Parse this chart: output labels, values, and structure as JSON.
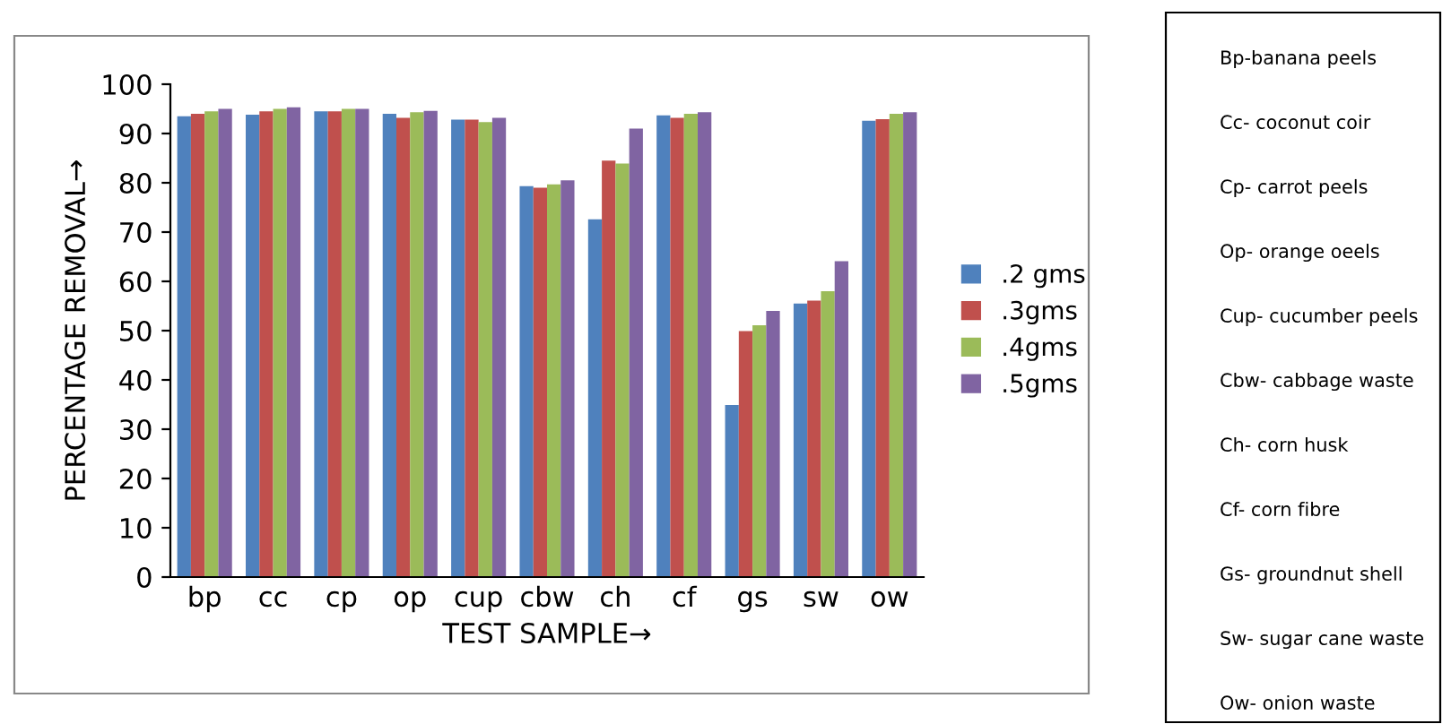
{
  "chart_data": {
    "type": "bar",
    "xlabel": "TEST SAMPLE→",
    "ylabel": "PERCENTAGE REMOVAL→",
    "categories": [
      "bp",
      "cc",
      "cp",
      "op",
      "cup",
      "cbw",
      "ch",
      "cf",
      "gs",
      "sw",
      "ow"
    ],
    "series": [
      {
        "name": ".2 gms",
        "color": "#4f81bd",
        "values": [
          93.5,
          93.8,
          94.5,
          94,
          92.8,
          79.3,
          72.6,
          93.7,
          34.9,
          55.5,
          92.6
        ]
      },
      {
        "name": ".3gms",
        "color": "#c0504d",
        "values": [
          94,
          94.5,
          94.5,
          93.2,
          92.8,
          79,
          84.5,
          93.2,
          49.9,
          56.1,
          92.9
        ]
      },
      {
        "name": ".4gms",
        "color": "#9bbb59",
        "values": [
          94.5,
          95,
          95,
          94.3,
          92.3,
          79.7,
          83.9,
          94,
          51.1,
          58,
          94
        ]
      },
      {
        "name": ".5gms",
        "color": "#8064a2",
        "values": [
          95,
          95.3,
          95,
          94.6,
          93.2,
          80.5,
          91,
          94.3,
          54,
          64.1,
          94.3
        ]
      }
    ],
    "ylim": [
      0,
      100
    ],
    "yticks": [
      0,
      10,
      20,
      30,
      40,
      50,
      60,
      70,
      80,
      90,
      100
    ],
    "grid": false,
    "legend": "right",
    "annotations": [
      "Bp-banana peels",
      "Cc- coconut coir",
      "Cp- carrot peels",
      "Op- orange oeels",
      "Cup- cucumber peels",
      "Cbw- cabbage waste",
      "Ch- corn husk",
      "Cf- corn fibre",
      "Gs- groundnut shell",
      "Sw- sugar cane waste",
      "Ow- onion waste"
    ]
  }
}
